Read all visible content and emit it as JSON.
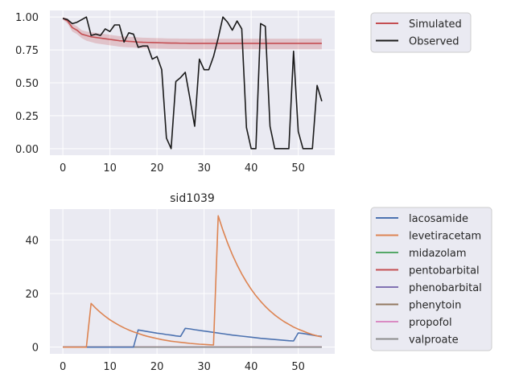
{
  "chart_data": [
    {
      "type": "line",
      "title": "",
      "xlabel": "",
      "ylabel": "",
      "xlim": [
        -2.75,
        57.75
      ],
      "ylim": [
        -0.05,
        1.05
      ],
      "xticks": [
        0,
        10,
        20,
        30,
        40,
        50
      ],
      "yticks": [
        0.0,
        0.25,
        0.5,
        0.75,
        1.0
      ],
      "ytick_labels": [
        "0.00",
        "0.25",
        "0.50",
        "0.75",
        "1.00"
      ],
      "grid": true,
      "legend_position": "outside-right-top",
      "series": [
        {
          "name": "Simulated",
          "color": "#c44e52",
          "x": [
            0,
            1,
            2,
            3,
            4,
            5,
            6,
            7,
            8,
            9,
            10,
            11,
            12,
            13,
            14,
            15,
            16,
            17,
            18,
            19,
            20,
            21,
            22,
            23,
            24,
            25,
            26,
            27,
            28,
            29,
            30,
            31,
            32,
            33,
            34,
            35,
            36,
            37,
            38,
            39,
            40,
            41,
            42,
            43,
            44,
            45,
            46,
            47,
            48,
            49,
            50,
            51,
            52,
            53,
            54,
            55
          ],
          "y": [
            0.99,
            0.97,
            0.92,
            0.9,
            0.87,
            0.86,
            0.85,
            0.845,
            0.84,
            0.835,
            0.83,
            0.825,
            0.82,
            0.818,
            0.815,
            0.813,
            0.81,
            0.808,
            0.807,
            0.806,
            0.805,
            0.804,
            0.803,
            0.802,
            0.802,
            0.801,
            0.801,
            0.8,
            0.8,
            0.8,
            0.8,
            0.8,
            0.8,
            0.8,
            0.8,
            0.8,
            0.8,
            0.8,
            0.8,
            0.8,
            0.8,
            0.8,
            0.8,
            0.8,
            0.8,
            0.8,
            0.8,
            0.8,
            0.8,
            0.8,
            0.8,
            0.8,
            0.8,
            0.8,
            0.8,
            0.8
          ],
          "band_lower": [
            0.98,
            0.95,
            0.89,
            0.87,
            0.84,
            0.82,
            0.81,
            0.8,
            0.795,
            0.79,
            0.785,
            0.78,
            0.775,
            0.772,
            0.77,
            0.768,
            0.765,
            0.763,
            0.762,
            0.761,
            0.76,
            0.759,
            0.758,
            0.757,
            0.757,
            0.756,
            0.756,
            0.755,
            0.755,
            0.755,
            0.755,
            0.755,
            0.755,
            0.755,
            0.755,
            0.755,
            0.755,
            0.755,
            0.755,
            0.755,
            0.755,
            0.755,
            0.755,
            0.755,
            0.755,
            0.755,
            0.755,
            0.755,
            0.755,
            0.755,
            0.755,
            0.755,
            0.755,
            0.755,
            0.755,
            0.755
          ],
          "band_upper": [
            1.0,
            0.99,
            0.95,
            0.93,
            0.9,
            0.89,
            0.885,
            0.88,
            0.875,
            0.87,
            0.865,
            0.86,
            0.855,
            0.852,
            0.85,
            0.848,
            0.845,
            0.843,
            0.842,
            0.841,
            0.84,
            0.839,
            0.838,
            0.837,
            0.837,
            0.836,
            0.836,
            0.835,
            0.835,
            0.835,
            0.835,
            0.835,
            0.835,
            0.835,
            0.835,
            0.835,
            0.835,
            0.835,
            0.835,
            0.835,
            0.835,
            0.835,
            0.835,
            0.835,
            0.835,
            0.835,
            0.835,
            0.835,
            0.835,
            0.835,
            0.835,
            0.835,
            0.835,
            0.835,
            0.835,
            0.835
          ]
        },
        {
          "name": "Observed",
          "color": "#1a1a1a",
          "x": [
            0,
            1,
            2,
            3,
            4,
            5,
            6,
            7,
            8,
            9,
            10,
            11,
            12,
            13,
            14,
            15,
            16,
            17,
            18,
            19,
            20,
            21,
            22,
            23,
            24,
            25,
            26,
            27,
            28,
            29,
            30,
            31,
            32,
            33,
            34,
            35,
            36,
            37,
            38,
            39,
            40,
            41,
            42,
            43,
            44,
            45,
            46,
            47,
            48,
            49,
            50,
            51,
            52,
            53,
            54,
            55
          ],
          "y": [
            0.99,
            0.98,
            0.95,
            0.96,
            0.98,
            1.0,
            0.86,
            0.87,
            0.86,
            0.91,
            0.89,
            0.94,
            0.94,
            0.81,
            0.88,
            0.87,
            0.77,
            0.78,
            0.78,
            0.68,
            0.7,
            0.6,
            0.08,
            0.0,
            0.51,
            0.54,
            0.58,
            0.38,
            0.17,
            0.68,
            0.6,
            0.6,
            0.7,
            0.84,
            1.0,
            0.96,
            0.9,
            0.97,
            0.91,
            0.16,
            0.0,
            0.0,
            0.95,
            0.93,
            0.17,
            0.0,
            0.0,
            0.0,
            0.0,
            0.74,
            0.13,
            0.0,
            0.0,
            0.0,
            0.48,
            0.36
          ]
        }
      ]
    },
    {
      "type": "line",
      "title": "sid1039",
      "xlabel": "",
      "ylabel": "",
      "xlim": [
        -2.75,
        57.75
      ],
      "ylim": [
        -2.5,
        51.5
      ],
      "xticks": [
        0,
        10,
        20,
        30,
        40,
        50
      ],
      "yticks": [
        0,
        20,
        40
      ],
      "ytick_labels": [
        "0",
        "20",
        "40"
      ],
      "grid": true,
      "legend_position": "outside-right-top",
      "series": [
        {
          "name": "lacosamide",
          "color": "#4c72b0",
          "x": [
            0,
            15,
            16,
            17,
            18,
            19,
            20,
            21,
            22,
            23,
            24,
            25,
            26,
            27,
            28,
            30,
            32,
            34,
            36,
            38,
            40,
            42,
            44,
            46,
            48,
            49,
            50,
            51,
            52,
            53,
            54,
            55
          ],
          "y": [
            0,
            0,
            6.4,
            6.1,
            5.8,
            5.5,
            5.2,
            5.0,
            4.7,
            4.5,
            4.2,
            4.0,
            7.0,
            6.8,
            6.5,
            6.0,
            5.5,
            5.0,
            4.5,
            4.1,
            3.7,
            3.3,
            3.0,
            2.7,
            2.4,
            2.3,
            5.3,
            5.1,
            4.8,
            4.5,
            4.2,
            4.0
          ]
        },
        {
          "name": "levetiracetam",
          "color": "#dd8452",
          "x": [
            0,
            5,
            6,
            7,
            8,
            9,
            10,
            11,
            12,
            13,
            14,
            15,
            16,
            17,
            18,
            19,
            20,
            21,
            22,
            23,
            24,
            25,
            26,
            27,
            28,
            29,
            30,
            31,
            32,
            33,
            34,
            35,
            36,
            37,
            38,
            39,
            40,
            41,
            42,
            43,
            44,
            45,
            46,
            47,
            48,
            49,
            50,
            51,
            52,
            53,
            54,
            55
          ],
          "y": [
            0,
            0,
            16.3,
            14.5,
            12.9,
            11.5,
            10.2,
            9.1,
            8.1,
            7.2,
            6.4,
            5.7,
            5.1,
            4.5,
            4.0,
            3.6,
            3.2,
            2.8,
            2.5,
            2.2,
            2.0,
            1.8,
            1.6,
            1.4,
            1.25,
            1.1,
            1.0,
            0.9,
            0.8,
            49.0,
            43.6,
            38.8,
            34.5,
            30.7,
            27.3,
            24.3,
            21.6,
            19.2,
            17.1,
            15.2,
            13.5,
            12.0,
            10.7,
            9.5,
            8.5,
            7.5,
            6.7,
            6.0,
            5.3,
            4.7,
            4.2,
            3.8
          ]
        },
        {
          "name": "midazolam",
          "color": "#55a868",
          "x": [
            0,
            55
          ],
          "y": [
            0,
            0
          ]
        },
        {
          "name": "pentobarbital",
          "color": "#c44e52",
          "x": [
            0,
            55
          ],
          "y": [
            0,
            0
          ]
        },
        {
          "name": "phenobarbital",
          "color": "#8172b3",
          "x": [
            0,
            55
          ],
          "y": [
            0,
            0
          ]
        },
        {
          "name": "phenytoin",
          "color": "#937860",
          "x": [
            0,
            55
          ],
          "y": [
            0,
            0
          ]
        },
        {
          "name": "propofol",
          "color": "#da8bc3",
          "x": [
            0,
            55
          ],
          "y": [
            0,
            0
          ]
        },
        {
          "name": "valproate",
          "color": "#8c8c8c",
          "x": [
            0,
            55
          ],
          "y": [
            0,
            0
          ]
        }
      ]
    }
  ],
  "style": {
    "axes_bg": "#eaeaf2",
    "grid_color": "#ffffff",
    "legend_bg": "#eaeaf2",
    "legend_border": "#cccccc",
    "text_color": "#262626"
  }
}
